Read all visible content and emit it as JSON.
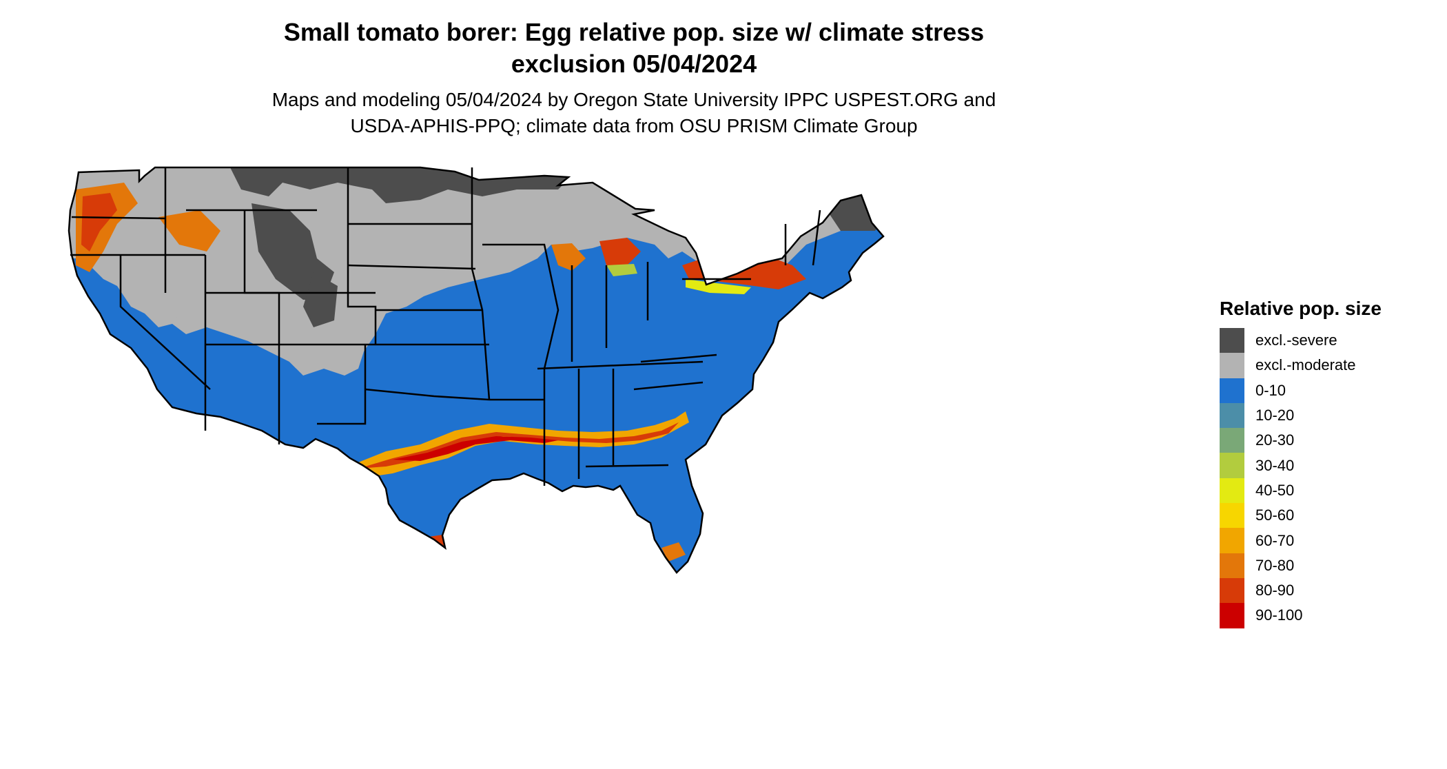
{
  "title_line1": "Small tomato borer: Egg relative pop. size w/ climate stress",
  "title_line2": "exclusion 05/04/2024",
  "subtitle_line1": "Maps and modeling 05/04/2024 by Oregon State University IPPC USPEST.ORG and",
  "subtitle_line2": "USDA-APHIS-PPQ; climate data from OSU PRISM Climate Group",
  "legend": {
    "title": "Relative pop. size",
    "items": [
      {
        "label": "excl.-severe",
        "color": "#4d4d4d"
      },
      {
        "label": "excl.-moderate",
        "color": "#b3b3b3"
      },
      {
        "label": "0-10",
        "color": "#1f72cf"
      },
      {
        "label": "10-20",
        "color": "#4c8ea8"
      },
      {
        "label": "20-30",
        "color": "#7aa877"
      },
      {
        "label": "30-40",
        "color": "#b2cc3e"
      },
      {
        "label": "40-50",
        "color": "#e3ea12"
      },
      {
        "label": "50-60",
        "color": "#f7d600"
      },
      {
        "label": "60-70",
        "color": "#f1a600"
      },
      {
        "label": "70-80",
        "color": "#e3770a"
      },
      {
        "label": "80-90",
        "color": "#d73b08"
      },
      {
        "label": "90-100",
        "color": "#cc0000"
      }
    ]
  },
  "map": {
    "region": "contiguous-united-states",
    "colors": {
      "background_fill": "#1f72cf",
      "moderate_fill": "#b3b3b3",
      "severe_fill": "#4d4d4d",
      "state_border": "#000000",
      "band_outer": "#f1a600",
      "band_mid": "#e3770a",
      "band_inner": "#d73b08",
      "band_core": "#cc0000",
      "band_yellow": "#e3ea12",
      "band_green": "#7aa877"
    }
  }
}
